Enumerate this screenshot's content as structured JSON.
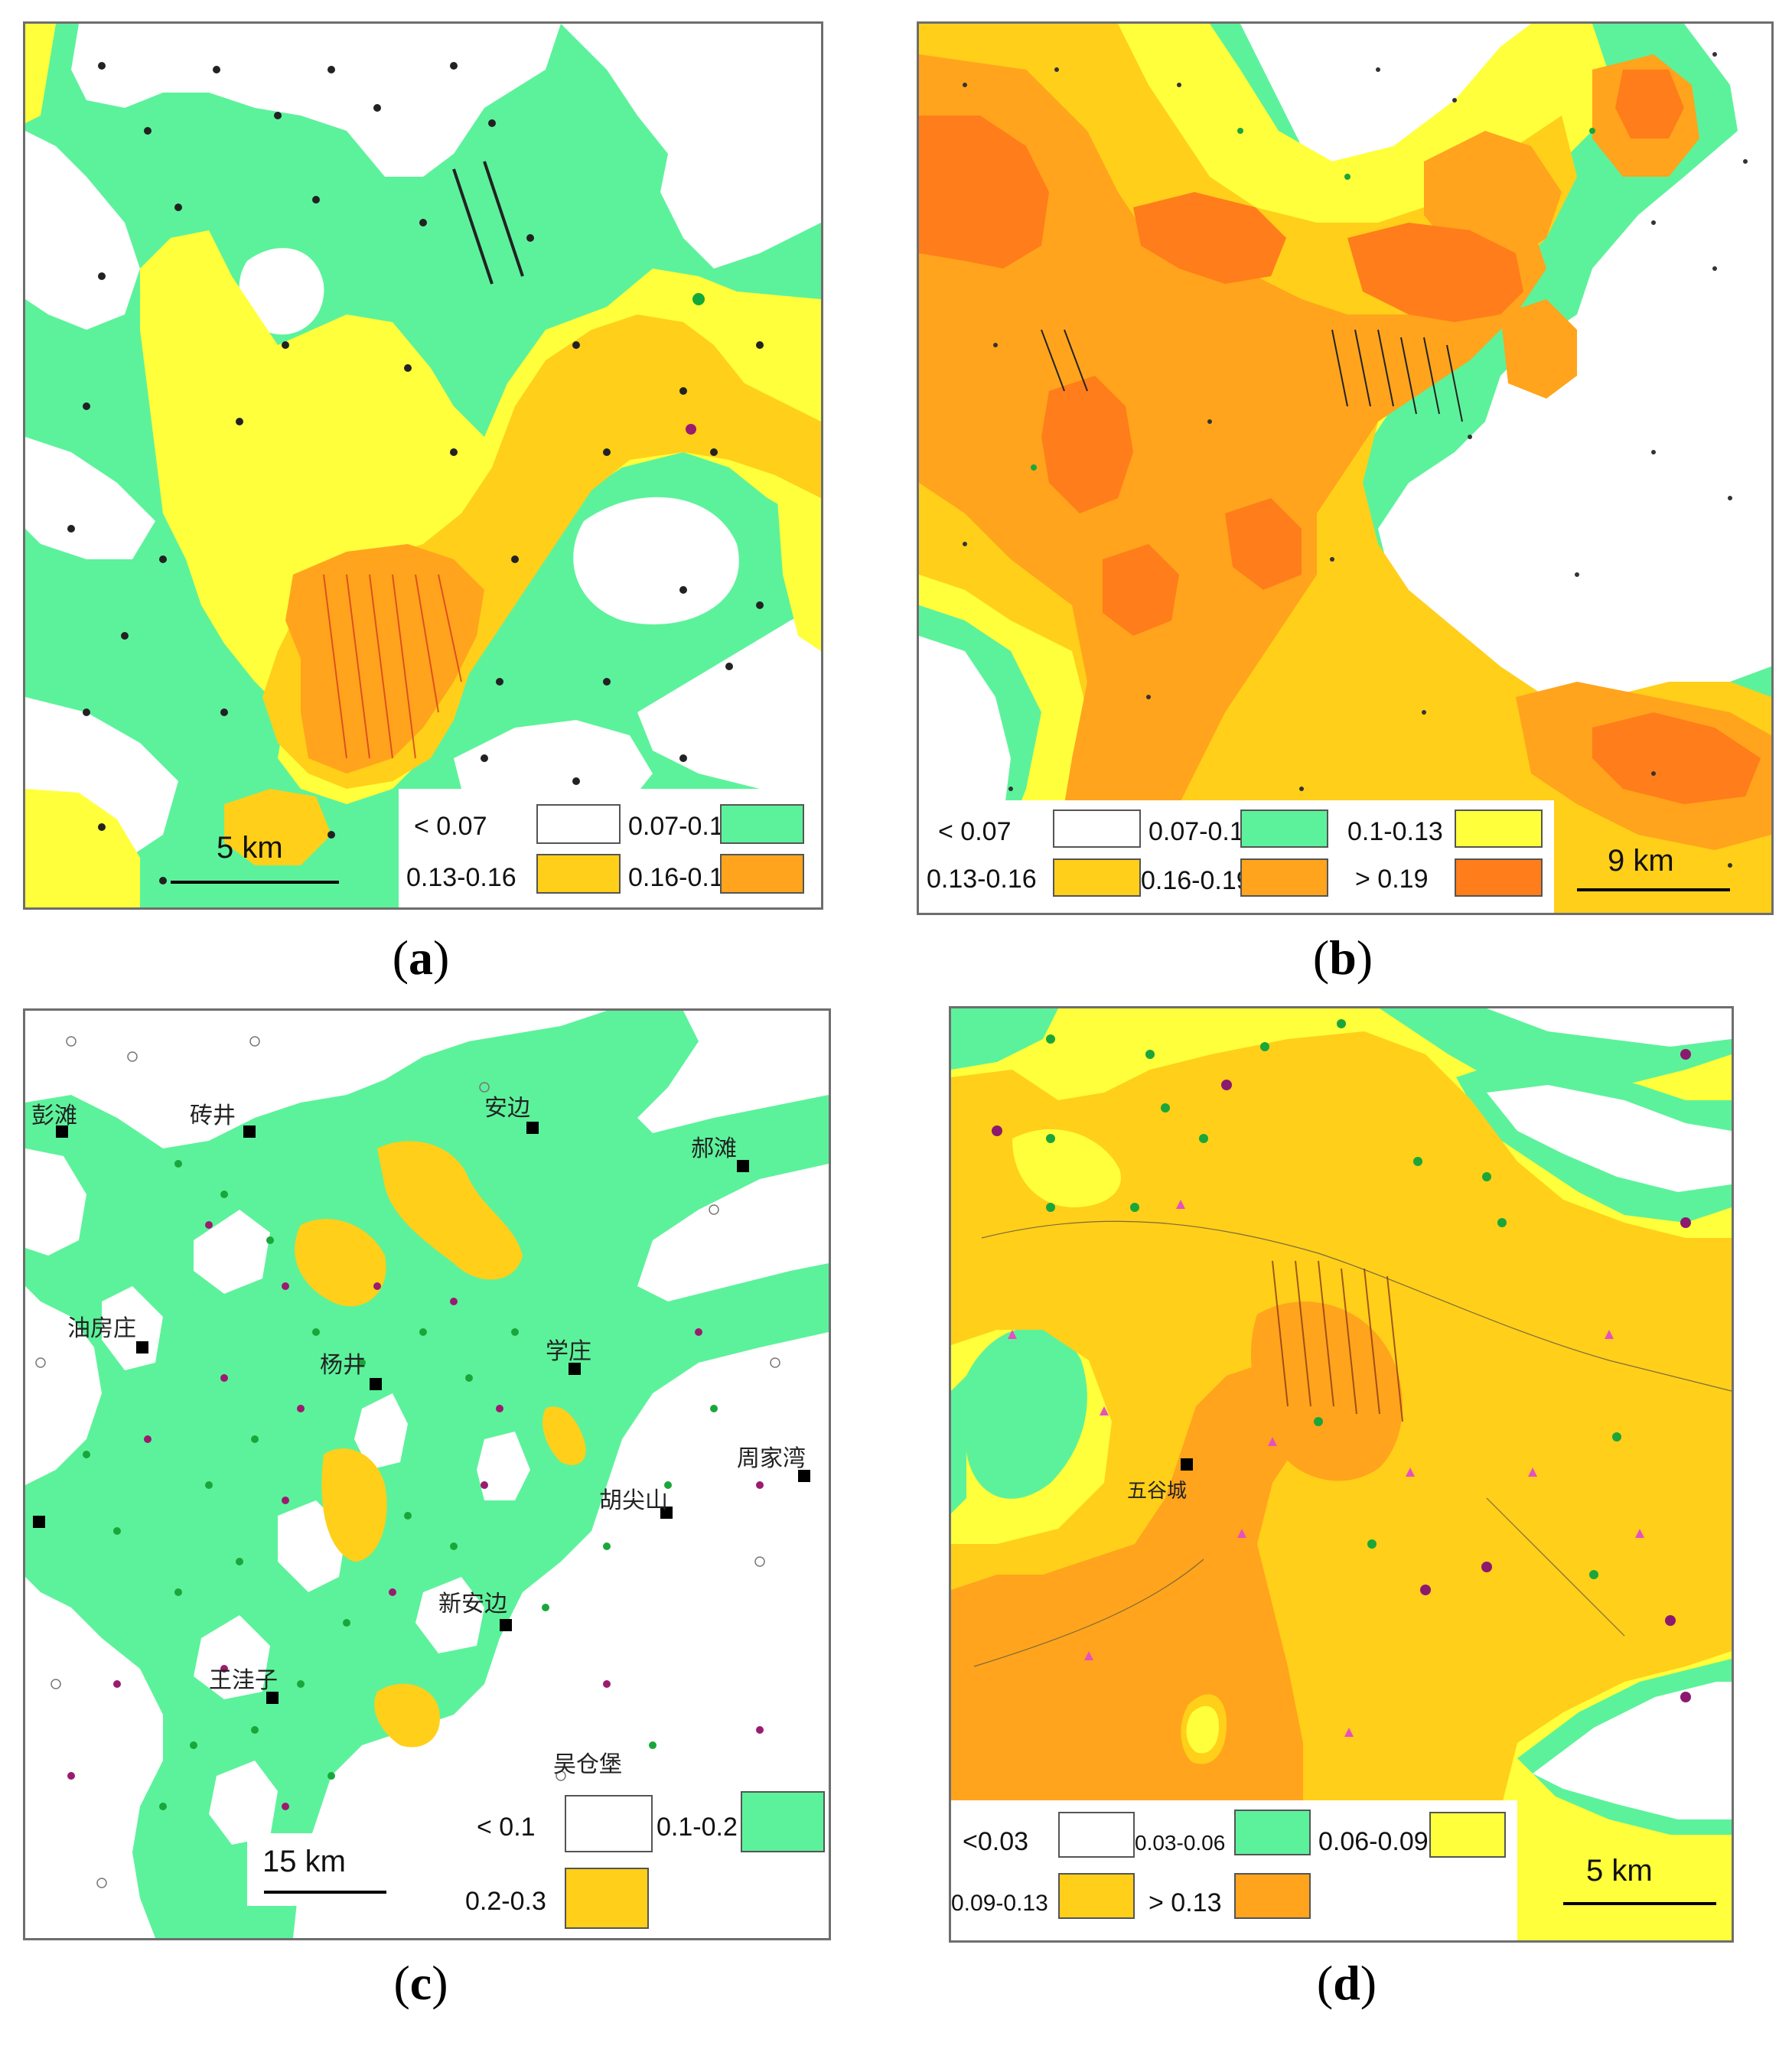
{
  "colors": {
    "white": "#ffffff",
    "green": "#5cf29b",
    "yellow": "#ffff3c",
    "gold": "#ffcf1a",
    "orange": "#ffa41c",
    "dark_orange": "#ff7d1a"
  },
  "panels": [
    {
      "caption": "a",
      "legend": [
        {
          "label": "< 0.07",
          "color": "#ffffff"
        },
        {
          "label": "0.07-0.1",
          "color": "#5cf29b"
        },
        {
          "label": "0.13-0.16",
          "color": "#ffcf1a"
        },
        {
          "label": "0.16-0.19",
          "color": "#ffa41c"
        }
      ],
      "scale": "5 km"
    },
    {
      "caption": "b",
      "legend": [
        {
          "label": "< 0.07",
          "color": "#ffffff"
        },
        {
          "label": "0.07-0.1",
          "color": "#5cf29b"
        },
        {
          "label": "0.1-0.13",
          "color": "#ffff3c"
        },
        {
          "label": "0.13-0.16",
          "color": "#ffcf1a"
        },
        {
          "label": "0.16-0.19",
          "color": "#ffa41c"
        },
        {
          "label": "> 0.19",
          "color": "#ff7d1a"
        }
      ],
      "scale": "9 km"
    },
    {
      "caption": "c",
      "legend": [
        {
          "label": "< 0.1",
          "color": "#ffffff"
        },
        {
          "label": "0.1-0.2",
          "color": "#5cf29b"
        },
        {
          "label": "0.2-0.3",
          "color": "#ffcf1a"
        }
      ],
      "scale": "15 km",
      "places": [
        "彭滩",
        "砖井",
        "安边",
        "郝滩",
        "油房庄",
        "杨井",
        "学庄",
        "周家湾",
        "新安边",
        "王洼子",
        "吴仓堡",
        "胡尖山"
      ]
    },
    {
      "caption": "d",
      "legend": [
        {
          "label": "<0.03",
          "color": "#ffffff"
        },
        {
          "label": "0.03-0.06",
          "color": "#5cf29b"
        },
        {
          "label": "0.06-0.09",
          "color": "#ffff3c"
        },
        {
          "label": "0.09-0.13",
          "color": "#ffcf1a"
        },
        {
          "label": "> 0.13",
          "color": "#ffa41c"
        }
      ],
      "scale": "5 km",
      "places": [
        "五谷城"
      ]
    }
  ]
}
